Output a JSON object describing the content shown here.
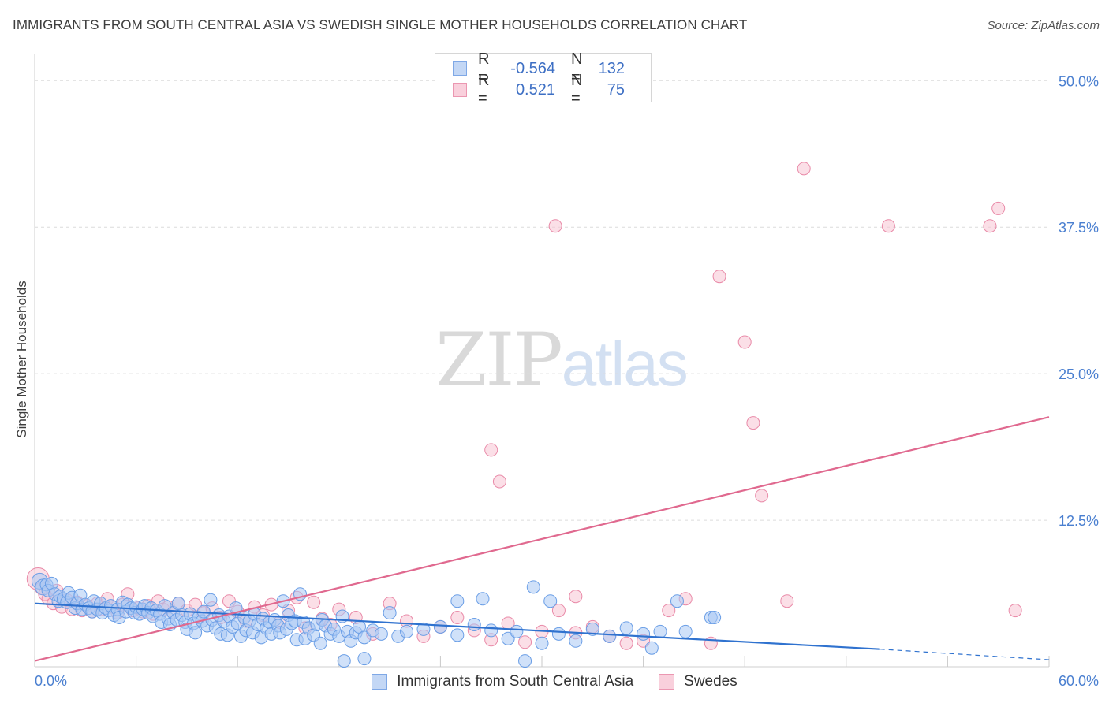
{
  "title": "IMMIGRANTS FROM SOUTH CENTRAL ASIA VS SWEDISH SINGLE MOTHER HOUSEHOLDS CORRELATION CHART",
  "source": "Source: ZipAtlas.com",
  "watermark": {
    "zip": "ZIP",
    "atlas": "atlas"
  },
  "legend_top": {
    "rows": [
      {
        "r_label": "R =",
        "r_value": "-0.564",
        "n_label": "N =",
        "n_value": "132"
      },
      {
        "r_label": "R =",
        "r_value": "0.521",
        "n_label": "N =",
        "n_value": "75"
      }
    ]
  },
  "legend_bottom": [
    {
      "label": "Immigrants from South Central Asia"
    },
    {
      "label": "Swedes"
    }
  ],
  "colors": {
    "blue_fill": "#aac8f4",
    "blue_stroke": "#6a9ee6",
    "blue_line": "#2f72cf",
    "pink_fill": "#f7c4d3",
    "pink_stroke": "#e98aa8",
    "pink_line": "#e0698f",
    "tick_text": "#4a7fd0",
    "grid": "#dcdcdc"
  },
  "chart_data": {
    "type": "scatter",
    "title": "IMMIGRANTS FROM SOUTH CENTRAL ASIA VS SWEDISH SINGLE MOTHER HOUSEHOLDS CORRELATION CHART",
    "xlabel": "",
    "ylabel": "Single Mother Households",
    "xlim": [
      0,
      60
    ],
    "ylim": [
      0,
      51.5
    ],
    "x_tick_labels": [
      {
        "value": 0,
        "label": "0.0%"
      },
      {
        "value": 60,
        "label": "60.0%"
      }
    ],
    "y_tick_labels": [
      {
        "value": 12.5,
        "label": "12.5%"
      },
      {
        "value": 25,
        "label": "25.0%"
      },
      {
        "value": 37.5,
        "label": "37.5%"
      },
      {
        "value": 50,
        "label": "50.0%"
      }
    ],
    "grid": true,
    "legend_position": "top-center",
    "series": [
      {
        "name": "Immigrants from South Central Asia",
        "color": "#6a9ee6",
        "trend": {
          "x": [
            0,
            50
          ],
          "y": [
            5.4,
            1.5
          ],
          "dashed_extension": {
            "x": [
              50,
              60
            ],
            "y": [
              1.5,
              0.6
            ]
          }
        },
        "points": [
          [
            0.3,
            7.3
          ],
          [
            0.5,
            6.8
          ],
          [
            0.7,
            7.0
          ],
          [
            0.8,
            6.5
          ],
          [
            1.0,
            7.1
          ],
          [
            1.2,
            6.2
          ],
          [
            1.4,
            5.6
          ],
          [
            1.5,
            6.0
          ],
          [
            1.7,
            5.8
          ],
          [
            1.9,
            5.5
          ],
          [
            2.0,
            6.3
          ],
          [
            2.2,
            5.9
          ],
          [
            2.4,
            5.0
          ],
          [
            2.5,
            5.4
          ],
          [
            2.7,
            6.1
          ],
          [
            2.8,
            4.9
          ],
          [
            3.0,
            5.3
          ],
          [
            3.2,
            5.0
          ],
          [
            3.4,
            4.7
          ],
          [
            3.5,
            5.6
          ],
          [
            3.7,
            4.9
          ],
          [
            3.9,
            5.4
          ],
          [
            4.0,
            4.6
          ],
          [
            4.2,
            5.0
          ],
          [
            4.4,
            4.8
          ],
          [
            4.5,
            5.2
          ],
          [
            4.7,
            4.4
          ],
          [
            4.9,
            4.9
          ],
          [
            5.0,
            4.2
          ],
          [
            5.2,
            5.5
          ],
          [
            5.4,
            4.7
          ],
          [
            5.5,
            5.3
          ],
          [
            5.7,
            5.0
          ],
          [
            5.9,
            4.6
          ],
          [
            6.0,
            5.1
          ],
          [
            6.2,
            4.5
          ],
          [
            6.4,
            4.9
          ],
          [
            6.5,
            5.2
          ],
          [
            6.7,
            4.6
          ],
          [
            6.9,
            5.0
          ],
          [
            7.0,
            4.3
          ],
          [
            7.2,
            4.8
          ],
          [
            7.4,
            4.5
          ],
          [
            7.5,
            3.8
          ],
          [
            7.7,
            5.2
          ],
          [
            7.9,
            4.1
          ],
          [
            8.0,
            3.6
          ],
          [
            8.2,
            4.6
          ],
          [
            8.4,
            4.0
          ],
          [
            8.5,
            5.4
          ],
          [
            8.7,
            4.4
          ],
          [
            8.9,
            3.8
          ],
          [
            9.0,
            3.2
          ],
          [
            9.2,
            4.5
          ],
          [
            9.4,
            3.7
          ],
          [
            9.5,
            2.9
          ],
          [
            9.7,
            4.2
          ],
          [
            9.9,
            3.9
          ],
          [
            10.0,
            4.7
          ],
          [
            10.2,
            3.5
          ],
          [
            10.4,
            5.7
          ],
          [
            10.5,
            4.0
          ],
          [
            10.7,
            3.3
          ],
          [
            10.9,
            4.4
          ],
          [
            11.0,
            2.8
          ],
          [
            11.2,
            3.9
          ],
          [
            11.4,
            2.7
          ],
          [
            11.5,
            4.3
          ],
          [
            11.7,
            3.4
          ],
          [
            11.9,
            5.0
          ],
          [
            12.0,
            3.7
          ],
          [
            12.2,
            2.6
          ],
          [
            12.4,
            4.2
          ],
          [
            12.5,
            3.1
          ],
          [
            12.7,
            3.9
          ],
          [
            12.9,
            2.9
          ],
          [
            13.0,
            4.5
          ],
          [
            13.2,
            3.6
          ],
          [
            13.4,
            2.5
          ],
          [
            13.5,
            4.1
          ],
          [
            13.7,
            3.3
          ],
          [
            13.9,
            3.8
          ],
          [
            14.0,
            2.8
          ],
          [
            14.2,
            4.0
          ],
          [
            14.4,
            3.5
          ],
          [
            14.5,
            2.9
          ],
          [
            14.7,
            5.6
          ],
          [
            14.9,
            3.2
          ],
          [
            15.0,
            4.4
          ],
          [
            15.2,
            3.7
          ],
          [
            15.4,
            3.9
          ],
          [
            15.5,
            2.3
          ],
          [
            15.7,
            6.2
          ],
          [
            15.9,
            3.8
          ],
          [
            16.0,
            2.4
          ],
          [
            16.2,
            3.3
          ],
          [
            16.5,
            2.7
          ],
          [
            16.7,
            3.6
          ],
          [
            16.9,
            2.0
          ],
          [
            17.0,
            4.0
          ],
          [
            17.2,
            3.5
          ],
          [
            17.5,
            2.8
          ],
          [
            17.7,
            3.2
          ],
          [
            18.0,
            2.6
          ],
          [
            18.2,
            4.3
          ],
          [
            18.5,
            3.0
          ],
          [
            18.7,
            2.2
          ],
          [
            19.0,
            2.9
          ],
          [
            19.2,
            3.4
          ],
          [
            19.5,
            2.5
          ],
          [
            20.0,
            3.1
          ],
          [
            20.5,
            2.8
          ],
          [
            21.0,
            4.6
          ],
          [
            21.5,
            2.6
          ],
          [
            22.0,
            3.0
          ],
          [
            23.0,
            3.2
          ],
          [
            24.0,
            3.4
          ],
          [
            25.0,
            2.7
          ],
          [
            26.0,
            3.6
          ],
          [
            27.0,
            3.1
          ],
          [
            28.0,
            2.4
          ],
          [
            28.5,
            3.0
          ],
          [
            30.0,
            2.0
          ],
          [
            31.0,
            2.8
          ],
          [
            33.0,
            3.2
          ],
          [
            34.0,
            2.6
          ],
          [
            18.3,
            0.5
          ],
          [
            19.5,
            0.7
          ],
          [
            29.0,
            0.5
          ],
          [
            40.0,
            4.2
          ],
          [
            38.0,
            5.6
          ],
          [
            36.0,
            2.8
          ],
          [
            37.0,
            3.0
          ],
          [
            35.0,
            3.3
          ],
          [
            32.0,
            2.2
          ],
          [
            26.5,
            5.8
          ],
          [
            29.5,
            6.8
          ],
          [
            25.0,
            5.6
          ],
          [
            30.5,
            5.6
          ],
          [
            38.5,
            3.0
          ],
          [
            40.2,
            4.2
          ],
          [
            36.5,
            1.6
          ]
        ]
      },
      {
        "name": "Swedes",
        "color": "#e98aa8",
        "trend": {
          "x": [
            0,
            60
          ],
          "y": [
            0.5,
            21.3
          ]
        },
        "points": [
          [
            0.2,
            7.5
          ],
          [
            0.4,
            6.7
          ],
          [
            0.6,
            6.2
          ],
          [
            0.8,
            5.8
          ],
          [
            1.1,
            5.4
          ],
          [
            1.3,
            6.5
          ],
          [
            1.6,
            5.1
          ],
          [
            1.9,
            5.7
          ],
          [
            2.2,
            4.9
          ],
          [
            2.5,
            5.5
          ],
          [
            2.8,
            4.8
          ],
          [
            3.1,
            5.2
          ],
          [
            3.4,
            4.7
          ],
          [
            3.7,
            5.4
          ],
          [
            4.0,
            4.9
          ],
          [
            4.3,
            5.8
          ],
          [
            4.6,
            5.1
          ],
          [
            4.9,
            4.6
          ],
          [
            5.2,
            5.3
          ],
          [
            5.5,
            6.2
          ],
          [
            5.8,
            4.8
          ],
          [
            6.1,
            5.0
          ],
          [
            6.4,
            4.7
          ],
          [
            6.7,
            5.2
          ],
          [
            7.0,
            4.5
          ],
          [
            7.3,
            5.6
          ],
          [
            7.6,
            4.9
          ],
          [
            7.9,
            5.1
          ],
          [
            8.2,
            4.6
          ],
          [
            8.5,
            5.4
          ],
          [
            9.0,
            4.8
          ],
          [
            9.5,
            5.3
          ],
          [
            10.0,
            4.6
          ],
          [
            10.5,
            5.0
          ],
          [
            11.0,
            4.2
          ],
          [
            11.5,
            5.6
          ],
          [
            12.0,
            4.7
          ],
          [
            12.5,
            3.9
          ],
          [
            13.0,
            5.1
          ],
          [
            13.5,
            4.4
          ],
          [
            14.0,
            5.3
          ],
          [
            14.5,
            3.8
          ],
          [
            15.0,
            4.8
          ],
          [
            15.5,
            5.9
          ],
          [
            16.0,
            3.3
          ],
          [
            16.5,
            5.5
          ],
          [
            17.0,
            4.1
          ],
          [
            17.5,
            3.6
          ],
          [
            18.0,
            4.9
          ],
          [
            19.0,
            4.2
          ],
          [
            20.0,
            2.8
          ],
          [
            21.0,
            5.4
          ],
          [
            22.0,
            3.9
          ],
          [
            23.0,
            2.6
          ],
          [
            24.0,
            3.4
          ],
          [
            25.0,
            4.2
          ],
          [
            26.0,
            3.1
          ],
          [
            27.0,
            2.3
          ],
          [
            28.0,
            3.7
          ],
          [
            29.0,
            2.1
          ],
          [
            30.0,
            3.0
          ],
          [
            31.0,
            4.8
          ],
          [
            32.0,
            2.9
          ],
          [
            33.0,
            3.4
          ],
          [
            34.0,
            2.6
          ],
          [
            35.0,
            2.0
          ],
          [
            36.0,
            2.2
          ],
          [
            27.0,
            18.5
          ],
          [
            27.5,
            15.8
          ],
          [
            30.8,
            37.6
          ],
          [
            40.5,
            33.3
          ],
          [
            45.5,
            42.5
          ],
          [
            42.5,
            20.8
          ],
          [
            43.0,
            14.6
          ],
          [
            50.5,
            37.6
          ],
          [
            42.0,
            27.7
          ],
          [
            56.5,
            37.6
          ],
          [
            57.0,
            39.1
          ],
          [
            58.0,
            4.8
          ],
          [
            37.5,
            4.8
          ],
          [
            38.5,
            5.8
          ],
          [
            40.0,
            2.0
          ],
          [
            44.5,
            5.6
          ],
          [
            32.0,
            6.0
          ]
        ]
      }
    ]
  }
}
